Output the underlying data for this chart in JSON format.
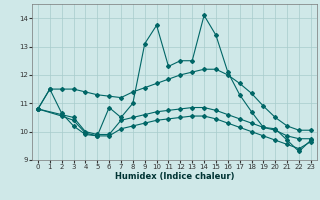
{
  "xlabel": "Humidex (Indice chaleur)",
  "xlim": [
    -0.5,
    23.5
  ],
  "ylim": [
    9,
    14.5
  ],
  "yticks": [
    9,
    10,
    11,
    12,
    13,
    14
  ],
  "xticks": [
    0,
    1,
    2,
    3,
    4,
    5,
    6,
    7,
    8,
    9,
    10,
    11,
    12,
    13,
    14,
    15,
    16,
    17,
    18,
    19,
    20,
    21,
    22,
    23
  ],
  "bg_color": "#cfe8e8",
  "grid_color": "#a8cccc",
  "line_color": "#006666",
  "lines": [
    {
      "x": [
        0,
        1,
        2,
        3,
        4,
        5,
        6,
        7,
        8,
        9,
        10,
        11,
        12,
        13,
        14,
        15,
        16,
        17,
        18,
        19,
        20,
        21,
        22,
        23
      ],
      "y": [
        10.8,
        11.5,
        10.65,
        10.2,
        9.9,
        9.85,
        10.85,
        10.5,
        11.0,
        13.1,
        13.75,
        12.3,
        12.5,
        12.5,
        14.1,
        13.4,
        12.1,
        11.3,
        10.7,
        10.15,
        10.1,
        9.7,
        9.3,
        9.7
      ]
    },
    {
      "x": [
        0,
        1,
        2,
        3,
        4,
        5,
        6,
        7,
        8,
        9,
        10,
        11,
        12,
        13,
        14,
        15,
        16,
        17,
        18,
        19,
        20,
        21,
        22,
        23
      ],
      "y": [
        10.8,
        11.5,
        11.5,
        11.5,
        11.4,
        11.3,
        11.25,
        11.2,
        11.4,
        11.55,
        11.7,
        11.85,
        12.0,
        12.1,
        12.2,
        12.2,
        12.0,
        11.7,
        11.35,
        10.9,
        10.5,
        10.2,
        10.05,
        10.05
      ]
    },
    {
      "x": [
        0,
        2,
        3,
        4,
        5,
        6,
        7,
        8,
        9,
        10,
        11,
        12,
        13,
        14,
        15,
        16,
        17,
        18,
        19,
        20,
        21,
        22,
        23
      ],
      "y": [
        10.8,
        10.6,
        10.5,
        10.0,
        9.9,
        9.9,
        10.4,
        10.5,
        10.6,
        10.7,
        10.75,
        10.8,
        10.85,
        10.85,
        10.75,
        10.6,
        10.45,
        10.3,
        10.15,
        10.05,
        9.85,
        9.75,
        9.75
      ]
    },
    {
      "x": [
        0,
        2,
        3,
        4,
        5,
        6,
        7,
        8,
        9,
        10,
        11,
        12,
        13,
        14,
        15,
        16,
        17,
        18,
        19,
        20,
        21,
        22,
        23
      ],
      "y": [
        10.8,
        10.55,
        10.4,
        9.95,
        9.85,
        9.85,
        10.1,
        10.2,
        10.3,
        10.4,
        10.45,
        10.5,
        10.55,
        10.55,
        10.45,
        10.3,
        10.15,
        10.0,
        9.85,
        9.7,
        9.55,
        9.4,
        9.65
      ]
    }
  ]
}
